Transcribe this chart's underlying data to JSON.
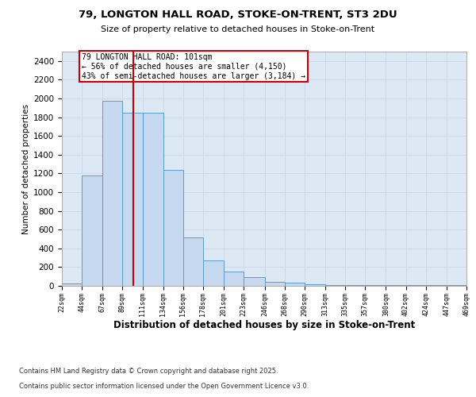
{
  "title1": "79, LONGTON HALL ROAD, STOKE-ON-TRENT, ST3 2DU",
  "title2": "Size of property relative to detached houses in Stoke-on-Trent",
  "xlabel": "Distribution of detached houses by size in Stoke-on-Trent",
  "ylabel": "Number of detached properties",
  "bin_edges": [
    22,
    44,
    67,
    89,
    111,
    134,
    156,
    178,
    201,
    223,
    246,
    268,
    290,
    313,
    335,
    357,
    380,
    402,
    424,
    447,
    469
  ],
  "bar_heights": [
    25,
    1175,
    1975,
    1850,
    1850,
    1240,
    520,
    270,
    155,
    95,
    45,
    35,
    20,
    10,
    5,
    5,
    5,
    5,
    5,
    5
  ],
  "bar_color": "#c6d9f0",
  "bar_edge_color": "#5b9bd5",
  "property_size": 101,
  "annotation_text": "79 LONGTON HALL ROAD: 101sqm\n← 56% of detached houses are smaller (4,150)\n43% of semi-detached houses are larger (3,184) →",
  "annotation_box_color": "#ffffff",
  "annotation_box_edge": "#cc0000",
  "vline_color": "#cc0000",
  "footer1": "Contains HM Land Registry data © Crown copyright and database right 2025.",
  "footer2": "Contains public sector information licensed under the Open Government Licence v3.0.",
  "ylim": [
    0,
    2500
  ],
  "yticks": [
    0,
    200,
    400,
    600,
    800,
    1000,
    1200,
    1400,
    1600,
    1800,
    2000,
    2200,
    2400
  ],
  "grid_color": "#ccd9e8",
  "background_color": "#dce9f5"
}
